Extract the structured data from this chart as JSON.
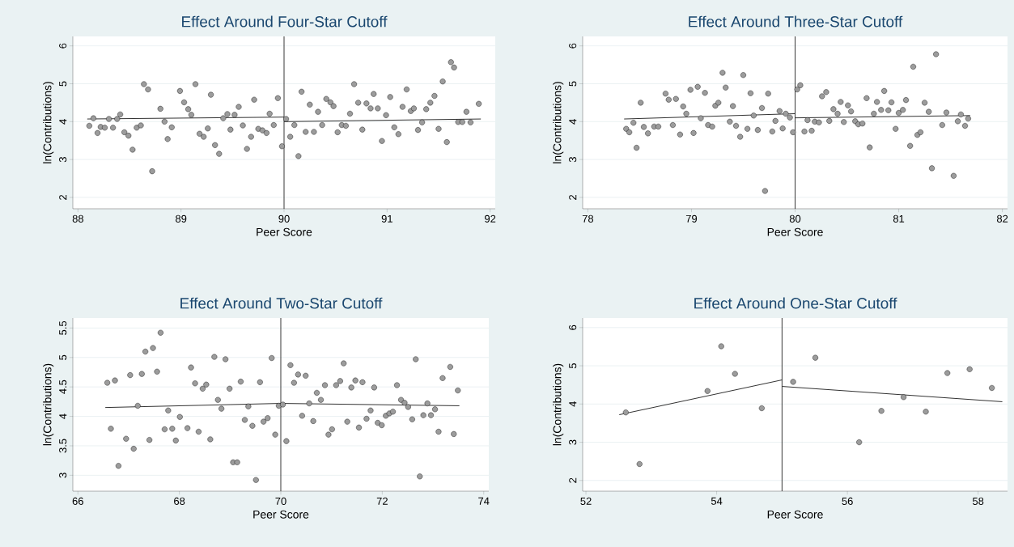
{
  "chart_data": [
    {
      "type": "scatter",
      "title": "Effect Around Four-Star Cutoff",
      "xlabel": "Peer Score",
      "ylabel": "ln(Contributions)",
      "xlim": [
        87.95,
        92.05
      ],
      "ylim": [
        1.7,
        6.25
      ],
      "xticks": [
        88,
        89,
        90,
        91,
        92
      ],
      "yticks": [
        2,
        3,
        4,
        5,
        6
      ],
      "grid": "y",
      "ref_lines": [
        {
          "axis": "x",
          "value": 90,
          "color": "#222222"
        }
      ],
      "series": [
        {
          "marker": "circle",
          "color": "#9c9c9c",
          "x": [
            88.11,
            88.15,
            88.19,
            88.22,
            88.26,
            88.3,
            88.34,
            88.38,
            88.41,
            88.45,
            88.49,
            88.53,
            88.57,
            88.61,
            88.64,
            88.68,
            88.72,
            88.8,
            88.84,
            88.87,
            88.91,
            88.99,
            89.03,
            89.07,
            89.1,
            89.14,
            89.18,
            89.22,
            89.26,
            89.29,
            89.33,
            89.37,
            89.41,
            89.45,
            89.48,
            89.52,
            89.56,
            89.6,
            89.64,
            89.68,
            89.71,
            89.75,
            89.79,
            89.83,
            89.86,
            89.9,
            89.94,
            89.98,
            90.02,
            90.06,
            90.1,
            90.14,
            90.17,
            90.21,
            90.25,
            90.29,
            90.33,
            90.37,
            90.41,
            90.45,
            90.48,
            90.52,
            90.56,
            90.6,
            90.64,
            90.68,
            90.72,
            90.76,
            90.8,
            90.84,
            90.87,
            90.91,
            90.95,
            90.99,
            91.03,
            91.07,
            91.11,
            91.15,
            91.19,
            91.23,
            91.26,
            91.3,
            91.34,
            91.38,
            91.42,
            91.46,
            91.5,
            91.54,
            91.58,
            91.62,
            91.65,
            91.69,
            91.73,
            91.77,
            91.81,
            91.89
          ],
          "values": [
            3.89,
            4.09,
            3.7,
            3.86,
            3.84,
            4.07,
            3.84,
            4.07,
            4.19,
            3.72,
            3.63,
            3.26,
            3.84,
            3.9,
            4.99,
            4.85,
            2.69,
            4.34,
            4.0,
            3.54,
            3.85,
            4.81,
            4.51,
            4.33,
            4.18,
            4.99,
            3.68,
            3.6,
            3.82,
            4.71,
            3.38,
            3.15,
            4.09,
            4.2,
            3.79,
            4.18,
            4.39,
            3.9,
            3.28,
            3.6,
            4.58,
            3.81,
            3.77,
            3.7,
            4.21,
            3.91,
            4.62,
            3.35,
            4.07,
            3.6,
            3.91,
            3.09,
            4.79,
            3.73,
            4.45,
            3.73,
            4.26,
            3.91,
            4.6,
            4.51,
            4.41,
            3.72,
            3.91,
            3.89,
            4.21,
            4.99,
            4.5,
            3.79,
            4.48,
            4.35,
            4.73,
            4.35,
            3.49,
            4.17,
            4.65,
            3.85,
            3.67,
            4.39,
            4.85,
            4.28,
            4.35,
            3.78,
            3.98,
            4.33,
            4.5,
            4.68,
            3.81,
            5.06,
            3.46,
            5.57,
            5.43,
            3.99,
            3.99,
            4.26,
            3.98,
            4.47
          ]
        },
        {
          "type": "line",
          "marker": "none",
          "color": "#1a1a1a",
          "x": [
            88.09,
            90
          ],
          "values": [
            4.07,
            4.12
          ]
        },
        {
          "type": "line",
          "marker": "none",
          "color": "#1a1a1a",
          "x": [
            90,
            91.91
          ],
          "values": [
            4.0,
            4.07
          ]
        }
      ]
    },
    {
      "type": "scatter",
      "title": "Effect Around Three-Star Cutoff",
      "xlabel": "Peer Score",
      "ylabel": "ln(Contributions)",
      "xlim": [
        77.95,
        82.05
      ],
      "ylim": [
        1.7,
        6.25
      ],
      "xticks": [
        78,
        79,
        80,
        81,
        82
      ],
      "yticks": [
        2,
        3,
        4,
        5,
        6
      ],
      "grid": "y",
      "ref_lines": [
        {
          "axis": "x",
          "value": 80,
          "color": "#222222"
        }
      ],
      "series": [
        {
          "marker": "circle",
          "color": "#9c9c9c",
          "x": [
            78.37,
            78.4,
            78.44,
            78.47,
            78.51,
            78.54,
            78.58,
            78.64,
            78.68,
            78.75,
            78.78,
            78.82,
            78.85,
            78.89,
            78.92,
            78.95,
            78.99,
            79.02,
            79.06,
            79.09,
            79.13,
            79.16,
            79.2,
            79.23,
            79.26,
            79.3,
            79.33,
            79.37,
            79.4,
            79.43,
            79.47,
            79.5,
            79.54,
            79.57,
            79.6,
            79.64,
            79.68,
            79.71,
            79.74,
            79.78,
            79.81,
            79.85,
            79.88,
            79.91,
            79.95,
            79.98,
            80.02,
            80.05,
            80.09,
            80.12,
            80.16,
            80.19,
            80.23,
            80.26,
            80.3,
            80.33,
            80.37,
            80.41,
            80.44,
            80.47,
            80.51,
            80.54,
            80.58,
            80.61,
            80.65,
            80.69,
            80.72,
            80.76,
            80.79,
            80.83,
            80.86,
            80.9,
            80.93,
            80.97,
            81.0,
            81.04,
            81.07,
            81.11,
            81.14,
            81.18,
            81.21,
            81.25,
            81.29,
            81.32,
            81.36,
            81.42,
            81.46,
            81.53,
            81.57,
            81.6,
            81.64,
            81.67
          ],
          "values": [
            3.81,
            3.72,
            3.97,
            3.31,
            4.5,
            3.86,
            3.69,
            3.87,
            3.87,
            4.74,
            4.58,
            3.91,
            4.6,
            3.66,
            4.4,
            4.21,
            4.84,
            3.7,
            4.92,
            4.09,
            4.76,
            3.91,
            3.87,
            4.42,
            4.5,
            5.29,
            4.9,
            4.0,
            4.41,
            3.89,
            3.6,
            5.23,
            3.81,
            4.75,
            4.16,
            3.78,
            4.36,
            2.17,
            4.74,
            3.74,
            4.02,
            4.28,
            3.82,
            4.21,
            4.11,
            3.72,
            4.85,
            4.96,
            3.74,
            4.04,
            3.76,
            4.0,
            3.98,
            4.67,
            4.78,
            4.02,
            4.33,
            4.21,
            4.52,
            3.99,
            4.43,
            4.27,
            4.01,
            3.93,
            3.95,
            4.62,
            3.32,
            4.21,
            4.52,
            4.31,
            4.81,
            4.3,
            4.51,
            3.81,
            4.23,
            4.31,
            4.57,
            3.36,
            5.45,
            3.65,
            3.72,
            4.5,
            4.26,
            2.77,
            5.78,
            3.91,
            4.24,
            2.57,
            4.01,
            4.19,
            3.89,
            4.08
          ]
        },
        {
          "type": "line",
          "marker": "none",
          "color": "#1a1a1a",
          "x": [
            78.35,
            80
          ],
          "values": [
            4.07,
            4.21
          ]
        },
        {
          "type": "line",
          "marker": "none",
          "color": "#1a1a1a",
          "x": [
            80,
            81.69
          ],
          "values": [
            4.1,
            4.16
          ]
        }
      ]
    },
    {
      "type": "scatter",
      "title": "Effect Around Two-Star Cutoff",
      "xlabel": "Peer Score",
      "ylabel": "ln(Contributions)",
      "xlim": [
        65.9,
        74.1
      ],
      "ylim": [
        2.73,
        5.67
      ],
      "xticks": [
        66,
        68,
        70,
        72,
        74
      ],
      "yticks": [
        3,
        3.5,
        4,
        4.5,
        5,
        5.5
      ],
      "grid": "y",
      "ref_lines": [
        {
          "axis": "x",
          "value": 70,
          "color": "#222222"
        }
      ],
      "series": [
        {
          "marker": "circle",
          "color": "#9c9c9c",
          "x": [
            66.58,
            66.73,
            66.65,
            66.8,
            66.95,
            67.03,
            67.1,
            67.18,
            67.26,
            67.33,
            67.41,
            67.48,
            67.56,
            67.63,
            67.71,
            67.78,
            67.86,
            67.93,
            68.01,
            68.16,
            68.23,
            68.31,
            68.38,
            68.46,
            68.53,
            68.61,
            68.69,
            68.76,
            68.83,
            68.91,
            68.99,
            69.06,
            69.14,
            69.21,
            69.29,
            69.36,
            69.44,
            69.51,
            69.59,
            69.66,
            69.74,
            69.82,
            69.89,
            69.96,
            70.04,
            70.11,
            70.19,
            70.26,
            70.34,
            70.42,
            70.49,
            70.56,
            70.64,
            70.71,
            70.79,
            70.87,
            70.94,
            71.01,
            71.09,
            71.17,
            71.24,
            71.31,
            71.39,
            71.47,
            71.54,
            71.61,
            71.69,
            71.77,
            71.84,
            71.91,
            71.99,
            72.07,
            72.14,
            72.21,
            72.29,
            72.37,
            72.44,
            72.51,
            72.59,
            72.66,
            72.74,
            72.81,
            72.89,
            72.96,
            73.04,
            73.11,
            73.19,
            73.34,
            73.41,
            73.49
          ],
          "values": [
            4.57,
            4.61,
            3.79,
            3.16,
            3.62,
            4.7,
            3.45,
            4.18,
            4.72,
            5.1,
            3.6,
            5.16,
            4.76,
            5.42,
            3.78,
            4.1,
            3.79,
            3.59,
            3.99,
            3.8,
            4.83,
            4.56,
            3.74,
            4.47,
            4.54,
            3.61,
            5.01,
            4.28,
            4.13,
            4.97,
            4.47,
            3.22,
            3.22,
            4.59,
            3.94,
            4.17,
            3.84,
            2.92,
            4.58,
            3.91,
            3.97,
            4.99,
            3.69,
            4.18,
            4.2,
            3.58,
            4.87,
            4.57,
            4.71,
            4.01,
            4.69,
            4.22,
            3.92,
            4.4,
            4.28,
            4.53,
            3.69,
            3.78,
            4.53,
            4.6,
            4.9,
            3.91,
            4.49,
            4.61,
            3.81,
            4.58,
            3.96,
            4.1,
            4.49,
            3.89,
            3.85,
            4.01,
            4.05,
            4.08,
            4.53,
            4.28,
            4.23,
            4.16,
            3.95,
            4.97,
            2.98,
            4.02,
            4.22,
            4.02,
            4.12,
            3.74,
            4.65,
            4.84,
            3.7,
            4.44
          ]
        },
        {
          "type": "line",
          "marker": "none",
          "color": "#1a1a1a",
          "x": [
            66.54,
            70,
            73.52
          ],
          "values": [
            4.15,
            4.22,
            4.18
          ]
        }
      ]
    },
    {
      "type": "scatter",
      "title": "Effect Around One-Star Cutoff",
      "xlabel": "Peer Score",
      "ylabel": "ln(Contributions)",
      "xlim": [
        51.95,
        58.45
      ],
      "ylim": [
        1.72,
        6.25
      ],
      "xticks": [
        52,
        54,
        56,
        58
      ],
      "yticks": [
        2,
        3,
        4,
        5,
        6
      ],
      "grid": "y",
      "ref_lines": [
        {
          "axis": "x",
          "value": 55,
          "color": "#222222"
        }
      ],
      "series": [
        {
          "marker": "circle",
          "color": "#9c9c9c",
          "x": [
            52.61,
            52.82,
            53.86,
            54.07,
            54.28,
            54.69,
            55.17,
            55.51,
            56.18,
            56.52,
            56.86,
            57.2,
            57.53,
            57.87,
            58.21
          ],
          "values": [
            3.78,
            2.43,
            4.34,
            5.51,
            4.79,
            3.89,
            4.58,
            5.21,
            3.0,
            3.82,
            4.18,
            3.8,
            4.81,
            4.91,
            4.42
          ]
        },
        {
          "type": "line",
          "marker": "none",
          "color": "#1a1a1a",
          "x": [
            52.51,
            55
          ],
          "values": [
            3.72,
            4.63
          ]
        },
        {
          "type": "line",
          "marker": "none",
          "color": "#1a1a1a",
          "x": [
            55,
            58.37
          ],
          "values": [
            4.46,
            4.06
          ]
        }
      ]
    }
  ]
}
